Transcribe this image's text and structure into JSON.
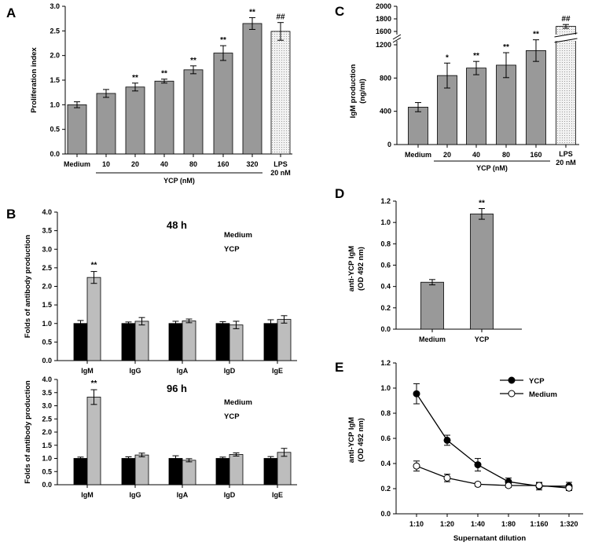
{
  "colors": {
    "bar_gray": "#999999",
    "bar_black": "#000000",
    "bar_light": "#bdbdbd",
    "lps_fill": "#f2f2f2"
  },
  "chart_data": [
    {
      "panel": "A",
      "type": "bar",
      "ylabel": "Proliferation index",
      "ylim": [
        0,
        3.0
      ],
      "yticks": [
        "0.0",
        "0.5",
        "1.0",
        "1.5",
        "2.0",
        "2.5",
        "3.0"
      ],
      "categories": [
        "Medium",
        "10",
        "20",
        "40",
        "80",
        "160",
        "320",
        "LPS 20 nM"
      ],
      "values": [
        1.0,
        1.23,
        1.36,
        1.48,
        1.71,
        2.05,
        2.65,
        2.49
      ],
      "errors": [
        0.06,
        0.08,
        0.08,
        0.04,
        0.08,
        0.15,
        0.12,
        0.18
      ],
      "significance": [
        "",
        "",
        "**",
        "**",
        "**",
        "**",
        "**",
        "##"
      ],
      "group_label": "YCP (nM)",
      "lps_label_1": "LPS",
      "lps_label_2": "20 nM"
    },
    {
      "panel": "B",
      "type": "bar",
      "ylabel": "Folds of antibody production",
      "categories": [
        "IgM",
        "IgG",
        "IgA",
        "IgD",
        "IgE"
      ],
      "legend": [
        "Medium",
        "YCP"
      ],
      "subpanels": [
        {
          "title": "48 h",
          "ylim": [
            0,
            4.0
          ],
          "yticks": [
            "0.0",
            "0.5",
            "1.0",
            "1.5",
            "2.0",
            "2.5",
            "3.0",
            "3.5",
            "4.0"
          ],
          "series": [
            {
              "name": "Medium",
              "values": [
                1.0,
                1.0,
                1.0,
                1.0,
                1.0
              ],
              "errors": [
                0.08,
                0.04,
                0.06,
                0.05,
                0.1
              ]
            },
            {
              "name": "YCP",
              "values": [
                2.24,
                1.06,
                1.07,
                0.96,
                1.11
              ],
              "errors": [
                0.16,
                0.1,
                0.05,
                0.1,
                0.1
              ]
            }
          ],
          "significance": [
            "**",
            "",
            "",
            "",
            ""
          ]
        },
        {
          "title": "96 h",
          "ylim": [
            0,
            4.0
          ],
          "yticks": [
            "0.0",
            "0.5",
            "1.0",
            "1.5",
            "2.0",
            "2.5",
            "3.0",
            "3.5",
            "4.0"
          ],
          "series": [
            {
              "name": "Medium",
              "values": [
                1.0,
                1.0,
                1.0,
                1.0,
                1.0
              ],
              "errors": [
                0.05,
                0.06,
                0.1,
                0.05,
                0.07
              ]
            },
            {
              "name": "YCP",
              "values": [
                3.33,
                1.13,
                0.93,
                1.15,
                1.23
              ],
              "errors": [
                0.28,
                0.07,
                0.06,
                0.06,
                0.15
              ]
            }
          ],
          "significance": [
            "**",
            "",
            "",
            "",
            ""
          ]
        }
      ]
    },
    {
      "panel": "C",
      "type": "bar",
      "ylabel_1": "IgM production",
      "ylabel_2": "(ng/ml)",
      "ylim_lower": [
        0,
        1200
      ],
      "ylim_upper": [
        1600,
        2000
      ],
      "yticks_lower": [
        "0",
        "400",
        "800",
        "1200"
      ],
      "yticks_upper": [
        "1600",
        "1800",
        "2000"
      ],
      "categories": [
        "Medium",
        "20",
        "40",
        "80",
        "160",
        "LPS 20 nM"
      ],
      "values": [
        450,
        830,
        920,
        955,
        1130,
        1680
      ],
      "errors": [
        55,
        150,
        80,
        150,
        130,
        30
      ],
      "significance": [
        "",
        "*",
        "**",
        "**",
        "**",
        "##"
      ],
      "group_label": "YCP (nM)",
      "lps_label_1": "LPS",
      "lps_label_2": "20 nM"
    },
    {
      "panel": "D",
      "type": "bar",
      "ylabel_1": "anti-YCP IgM",
      "ylabel_2": "(OD 492 nm)",
      "ylim": [
        0,
        1.2
      ],
      "yticks": [
        "0.0",
        "0.2",
        "0.4",
        "0.6",
        "0.8",
        "1.0",
        "1.2"
      ],
      "categories": [
        "Medium",
        "YCP"
      ],
      "values": [
        0.44,
        1.08
      ],
      "errors": [
        0.025,
        0.05
      ],
      "significance": [
        "",
        "**"
      ]
    },
    {
      "panel": "E",
      "type": "line",
      "ylabel_1": "anti-YCP IgM",
      "ylabel_2": "(OD 492 nm)",
      "xlabel": "Supernatant dilution",
      "ylim": [
        0,
        1.2
      ],
      "yticks": [
        "0.0",
        "0.2",
        "0.4",
        "0.6",
        "0.8",
        "1.0",
        "1.2"
      ],
      "x": [
        "1:10",
        "1:20",
        "1:40",
        "1:80",
        "1:160",
        "1:320"
      ],
      "series": [
        {
          "name": "YCP",
          "marker": "filled",
          "values": [
            0.955,
            0.585,
            0.39,
            0.255,
            0.22,
            0.22
          ],
          "errors": [
            0.08,
            0.04,
            0.05,
            0.03,
            0.03,
            0.03
          ]
        },
        {
          "name": "Medium",
          "marker": "open",
          "values": [
            0.38,
            0.285,
            0.235,
            0.225,
            0.225,
            0.205
          ],
          "errors": [
            0.04,
            0.03,
            0.015,
            0.015,
            0.02,
            0.02
          ]
        }
      ]
    }
  ]
}
